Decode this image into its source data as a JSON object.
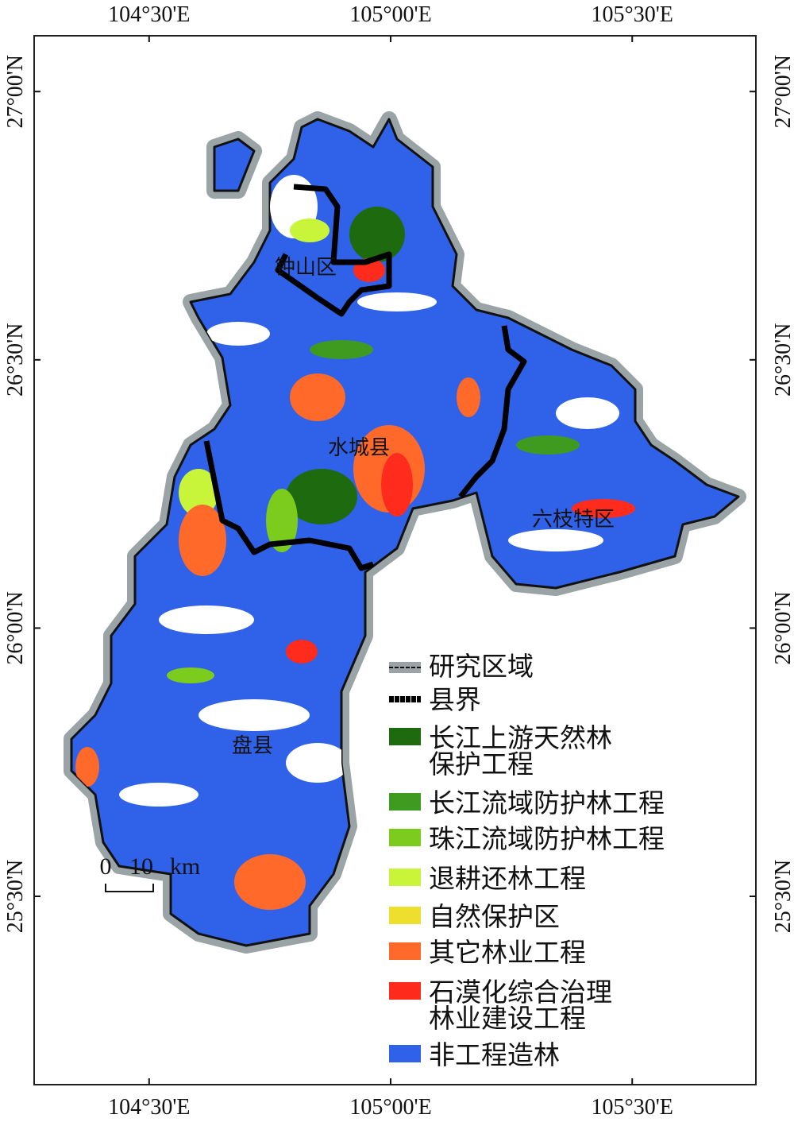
{
  "map": {
    "xlim": [
      104.262,
      105.756
    ],
    "ylim": [
      25.149,
      27.104
    ],
    "xticks": [
      {
        "value": 104.5,
        "label": "104°30'E"
      },
      {
        "value": 105,
        "label": "105°00'E"
      },
      {
        "value": 105.5,
        "label": "105°30'E"
      }
    ],
    "yticks": [
      {
        "value": 27,
        "label": "27°00'N"
      },
      {
        "value": 26.5,
        "label": "26°30'N"
      },
      {
        "value": 26,
        "label": "26°00'N"
      },
      {
        "value": 25.5,
        "label": "25°30'N"
      }
    ],
    "places": [
      "钟山区",
      "水城县",
      "六枝特区",
      "盘县"
    ],
    "legend": [
      {
        "label": [
          "研究区域"
        ]
      },
      {
        "label": [
          "县界"
        ]
      },
      {
        "label": [
          "长江上游天然林",
          "保护工程"
        ],
        "color": "#1d6b0e"
      },
      {
        "label": [
          "长江流域防护林工程"
        ],
        "color": "#3f9b1f"
      },
      {
        "label": [
          "珠江流域防护林工程"
        ],
        "color": "#7ccc1e"
      },
      {
        "label": [
          "退耕还林工程"
        ],
        "color": "#c8f53a"
      },
      {
        "label": [
          "自然保护区"
        ],
        "color": "#eede2e"
      },
      {
        "label": [
          "其它林业工程"
        ],
        "color": "#ff6a2a"
      },
      {
        "label": [
          "石漠化综合治理",
          "林业建设工程"
        ],
        "color": "#ff2b1c"
      },
      {
        "label": [
          "非工程造林"
        ],
        "color": "#2f62e8"
      }
    ],
    "scale_bar": [
      "0",
      "10",
      "km"
    ]
  }
}
